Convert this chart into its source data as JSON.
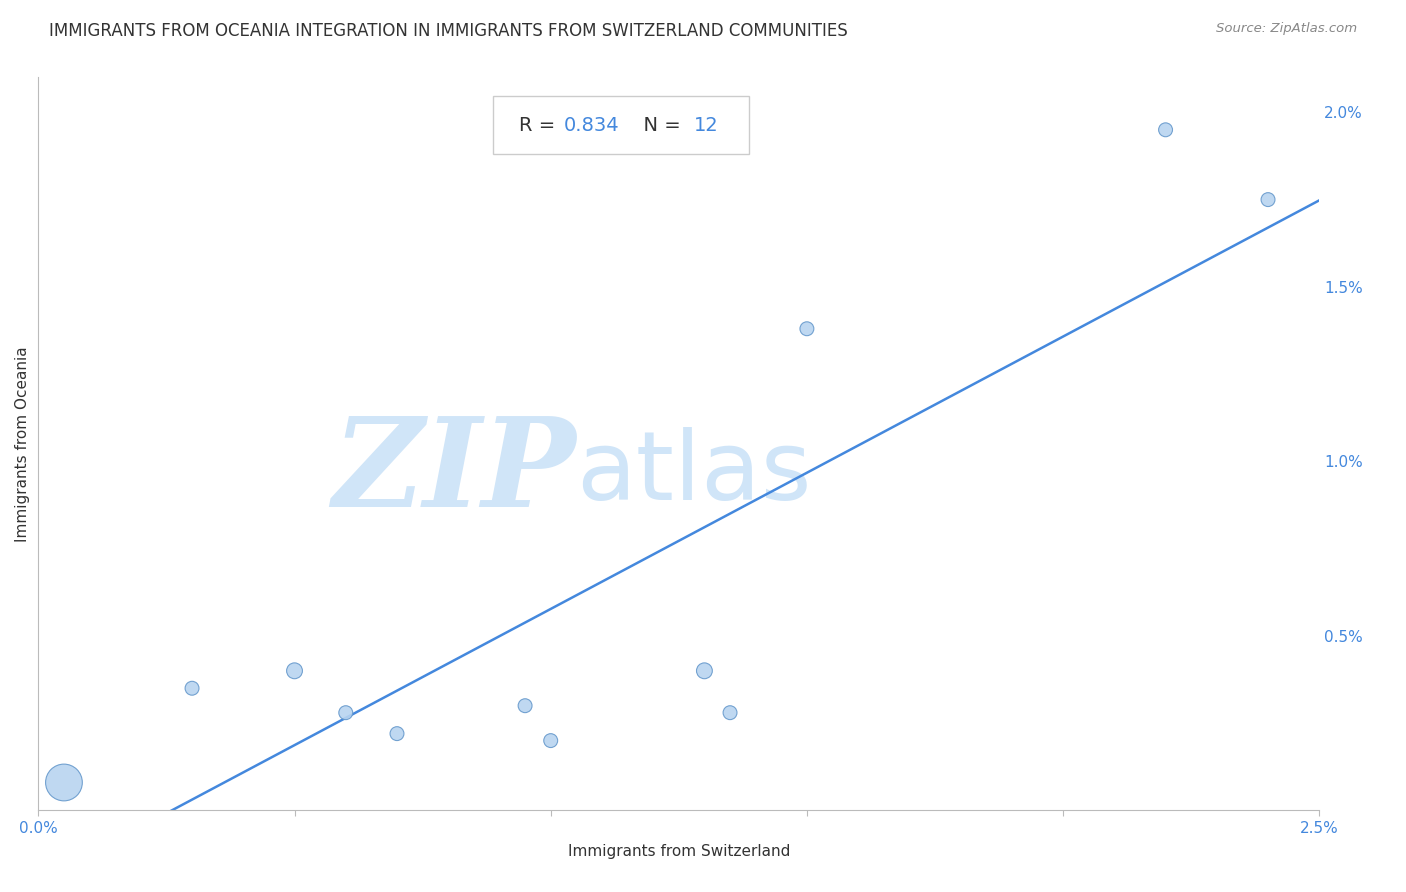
{
  "title": "IMMIGRANTS FROM OCEANIA INTEGRATION IN IMMIGRANTS FROM SWITZERLAND COMMUNITIES",
  "source_text": "Source: ZipAtlas.com",
  "xlabel": "Immigrants from Switzerland",
  "ylabel": "Immigrants from Oceania",
  "R_value": "0.834",
  "N_value": "12",
  "xlim": [
    0.0,
    0.025
  ],
  "ylim": [
    0.0,
    0.021
  ],
  "scatter_x": [
    0.0005,
    0.003,
    0.005,
    0.006,
    0.007,
    0.0095,
    0.01,
    0.013,
    0.0135,
    0.015,
    0.022,
    0.024
  ],
  "scatter_y": [
    0.0008,
    0.0035,
    0.004,
    0.0028,
    0.0022,
    0.003,
    0.002,
    0.004,
    0.0028,
    0.0138,
    0.0195,
    0.0175
  ],
  "scatter_sizes": [
    700,
    100,
    130,
    100,
    100,
    100,
    100,
    130,
    100,
    100,
    100,
    100
  ],
  "scatter_color": "#b8d4f0",
  "scatter_edge_color": "#6699cc",
  "line_color": "#4488dd",
  "line_width": 1.8,
  "watermark_text_zip": "ZIP",
  "watermark_text_atlas": "atlas",
  "watermark_color": "#d0e5f8",
  "watermark_fontsize": 90,
  "title_fontsize": 12,
  "axis_label_fontsize": 11,
  "tick_fontsize": 11,
  "annotation_fontsize": 14,
  "background_color": "#ffffff",
  "grid_color": "#c8d8e8",
  "grid_linestyle": "--",
  "grid_linewidth": 0.8,
  "text_color_dark": "#333333",
  "text_color_blue": "#4488dd",
  "tick_color": "#4488dd"
}
